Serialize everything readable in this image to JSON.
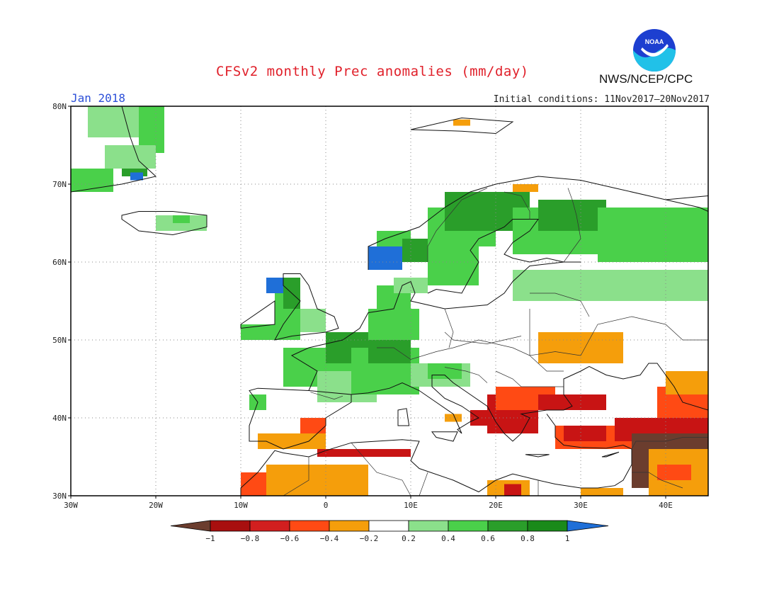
{
  "title": "CFSv2 monthly Prec anomalies (mm/day)",
  "month_label": "Jan 2018",
  "initial_conditions": "Initial conditions: 11Nov2017–20Nov2017",
  "agency": "NWS/NCEP/CPC",
  "logo": {
    "text": "NOAA",
    "icon": "noaa-logo-icon"
  },
  "map": {
    "lon_range": [
      -30,
      45
    ],
    "lat_range": [
      30,
      80
    ],
    "lon_ticks": [
      {
        "value": -30,
        "label": "30W"
      },
      {
        "value": -20,
        "label": "20W"
      },
      {
        "value": -10,
        "label": "10W"
      },
      {
        "value": 0,
        "label": "0"
      },
      {
        "value": 10,
        "label": "10E"
      },
      {
        "value": 20,
        "label": "20E"
      },
      {
        "value": 30,
        "label": "30E"
      },
      {
        "value": 40,
        "label": "40E"
      }
    ],
    "lat_ticks": [
      {
        "value": 30,
        "label": "30N"
      },
      {
        "value": 40,
        "label": "40N"
      },
      {
        "value": 50,
        "label": "50N"
      },
      {
        "value": 60,
        "label": "60N"
      },
      {
        "value": 70,
        "label": "70N"
      },
      {
        "value": 80,
        "label": "80N"
      }
    ],
    "grid": true,
    "anomaly_regions": [
      {
        "lon": -28,
        "lat": 76,
        "w": 8,
        "h": 4,
        "color": "#8be08b"
      },
      {
        "lon": -22,
        "lat": 74,
        "w": 3,
        "h": 6,
        "color": "#4ad04a"
      },
      {
        "lon": -26,
        "lat": 72,
        "w": 6,
        "h": 3,
        "color": "#8be08b"
      },
      {
        "lon": -30,
        "lat": 69,
        "w": 5,
        "h": 3,
        "color": "#4ad04a"
      },
      {
        "lon": -24,
        "lat": 71,
        "w": 3,
        "h": 1,
        "color": "#2a9e2a"
      },
      {
        "lon": -23,
        "lat": 70.5,
        "w": 1.5,
        "h": 1,
        "color": "#1f6fd8"
      },
      {
        "lon": -20,
        "lat": 64,
        "w": 6,
        "h": 2,
        "color": "#8be08b"
      },
      {
        "lon": -18,
        "lat": 65,
        "w": 2,
        "h": 1,
        "color": "#4ad04a"
      },
      {
        "lon": -10,
        "lat": 50,
        "w": 4,
        "h": 2,
        "color": "#4ad04a"
      },
      {
        "lon": -6,
        "lat": 50,
        "w": 3,
        "h": 6,
        "color": "#4ad04a"
      },
      {
        "lon": -5,
        "lat": 54,
        "w": 2,
        "h": 4,
        "color": "#2a9e2a"
      },
      {
        "lon": -7,
        "lat": 56,
        "w": 2,
        "h": 2,
        "color": "#1f6fd8"
      },
      {
        "lon": -3,
        "lat": 51,
        "w": 3,
        "h": 3,
        "color": "#8be08b"
      },
      {
        "lon": -5,
        "lat": 44,
        "w": 8,
        "h": 5,
        "color": "#4ad04a"
      },
      {
        "lon": 0,
        "lat": 47,
        "w": 6,
        "h": 4,
        "color": "#2a9e2a"
      },
      {
        "lon": -1,
        "lat": 42,
        "w": 7,
        "h": 4,
        "color": "#8be08b"
      },
      {
        "lon": 3,
        "lat": 43,
        "w": 8,
        "h": 6,
        "color": "#4ad04a"
      },
      {
        "lon": 5,
        "lat": 47,
        "w": 5,
        "h": 3,
        "color": "#2a9e2a"
      },
      {
        "lon": 5,
        "lat": 50,
        "w": 6,
        "h": 4,
        "color": "#4ad04a"
      },
      {
        "lon": 10,
        "lat": 44,
        "w": 7,
        "h": 3,
        "color": "#8be08b"
      },
      {
        "lon": 12,
        "lat": 45,
        "w": 4,
        "h": 2,
        "color": "#4ad04a"
      },
      {
        "lon": 6,
        "lat": 54,
        "w": 4,
        "h": 3,
        "color": "#4ad04a"
      },
      {
        "lon": 8,
        "lat": 56,
        "w": 4,
        "h": 2,
        "color": "#8be08b"
      },
      {
        "lon": 5,
        "lat": 59,
        "w": 4,
        "h": 3,
        "color": "#1f6fd8"
      },
      {
        "lon": 6,
        "lat": 62,
        "w": 4,
        "h": 2,
        "color": "#4ad04a"
      },
      {
        "lon": 9,
        "lat": 60,
        "w": 4,
        "h": 3,
        "color": "#2a9e2a"
      },
      {
        "lon": 12,
        "lat": 62,
        "w": 8,
        "h": 5,
        "color": "#4ad04a"
      },
      {
        "lon": 14,
        "lat": 64,
        "w": 10,
        "h": 5,
        "color": "#2a9e2a"
      },
      {
        "lon": 12,
        "lat": 57,
        "w": 6,
        "h": 5,
        "color": "#4ad04a"
      },
      {
        "lon": 22,
        "lat": 61,
        "w": 10,
        "h": 6,
        "color": "#4ad04a"
      },
      {
        "lon": 25,
        "lat": 64,
        "w": 8,
        "h": 4,
        "color": "#2a9e2a"
      },
      {
        "lon": 32,
        "lat": 60,
        "w": 13,
        "h": 7,
        "color": "#4ad04a"
      },
      {
        "lon": 22,
        "lat": 55,
        "w": 23,
        "h": 4,
        "color": "#8be08b"
      },
      {
        "lon": 22,
        "lat": 69,
        "w": 3,
        "h": 1,
        "color": "#f59e0b"
      },
      {
        "lon": 15,
        "lat": 77.5,
        "w": 2,
        "h": 0.8,
        "color": "#f59e0b"
      },
      {
        "lon": 25,
        "lat": 47,
        "w": 10,
        "h": 4,
        "color": "#f59e0b"
      },
      {
        "lon": 19,
        "lat": 38,
        "w": 6,
        "h": 5,
        "color": "#c81414"
      },
      {
        "lon": 20,
        "lat": 41,
        "w": 7,
        "h": 3,
        "color": "#ff4a14"
      },
      {
        "lon": 25,
        "lat": 41,
        "w": 8,
        "h": 2,
        "color": "#c81414"
      },
      {
        "lon": 27,
        "lat": 36,
        "w": 10,
        "h": 3,
        "color": "#ff4a14"
      },
      {
        "lon": 28,
        "lat": 37,
        "w": 5,
        "h": 2,
        "color": "#c81414"
      },
      {
        "lon": 34,
        "lat": 37,
        "w": 11,
        "h": 3,
        "color": "#c81414"
      },
      {
        "lon": 36,
        "lat": 36,
        "w": 9,
        "h": 2,
        "color": "#6b3d2e"
      },
      {
        "lon": 36,
        "lat": 31,
        "w": 3,
        "h": 5,
        "color": "#6b3d2e"
      },
      {
        "lon": 38,
        "lat": 30,
        "w": 7,
        "h": 6,
        "color": "#f59e0b"
      },
      {
        "lon": 39,
        "lat": 32,
        "w": 4,
        "h": 2,
        "color": "#ff4a14"
      },
      {
        "lon": 39,
        "lat": 40,
        "w": 6,
        "h": 4,
        "color": "#ff4a14"
      },
      {
        "lon": 40,
        "lat": 43,
        "w": 5,
        "h": 3,
        "color": "#f59e0b"
      },
      {
        "lon": -7,
        "lat": 30,
        "w": 12,
        "h": 4,
        "color": "#f59e0b"
      },
      {
        "lon": -10,
        "lat": 30,
        "w": 3,
        "h": 3,
        "color": "#ff4a14"
      },
      {
        "lon": -1,
        "lat": 35,
        "w": 11,
        "h": 1,
        "color": "#c81414"
      },
      {
        "lon": -8,
        "lat": 36,
        "w": 8,
        "h": 2,
        "color": "#f59e0b"
      },
      {
        "lon": -3,
        "lat": 38,
        "w": 3,
        "h": 2,
        "color": "#ff4a14"
      },
      {
        "lon": 19,
        "lat": 30,
        "w": 5,
        "h": 2,
        "color": "#f59e0b"
      },
      {
        "lon": 21,
        "lat": 30,
        "w": 2,
        "h": 1.5,
        "color": "#c81414"
      },
      {
        "lon": 30,
        "lat": 30,
        "w": 5,
        "h": 1,
        "color": "#f59e0b"
      },
      {
        "lon": 17,
        "lat": 39,
        "w": 2,
        "h": 2,
        "color": "#c81414"
      },
      {
        "lon": 14,
        "lat": 39.5,
        "w": 2,
        "h": 1,
        "color": "#f59e0b"
      },
      {
        "lon": -9,
        "lat": 41,
        "w": 2,
        "h": 2,
        "color": "#4ad04a"
      }
    ],
    "land_outlines": [
      "M -24 80 L -23 76 L -22 73 L -20 71 L -24 70 L -30 69",
      "M -24 66 L -22 66.5 L -18 66.5 L -14 66 L -14 64.5 L -18 63.5 L -22 64 L -24 65.5 Z",
      "M -10 52 L -6 55 L -6 52 L -10 51.5 Z",
      "M -6 50 L -5 52 L -3 55 L -5 57 L -5 58.5 L -3 58.5 L -2 57 L -1 54 L 1 53 L 1.5 51.5 L 0 51 L -4 50.5 Z",
      "M -9 43.5 L -8 42 L -9 39 L -9 37 L -7 37 L -5 36 L -2 37 L 0 39 L 0 40 L 3 42 L 3 43 L -2 43.5 L -8 43.8 Z",
      "M -2 43.5 L -1 46 L -4 48 L -2 49 L 2 50 L 4 51.5 L 5 53.5 L 8 54 L 9 57 L 10 57.5 L 10.5 56 L 10 55 L 12 54.5 L 14 54 L 19 54.5 L 21 56 L 22 57.5 L 24 59.5 L 28 60",
      "M 5 59 L 5 62 L 7 63 L 11 64.5 L 14 67 L 17 69 L 20 70 L 25 71 L 30 70.5 L 34 69.5 L 40 68 L 45 68.5",
      "M 12 56 L 13 56.5 L 16 56 L 17 58 L 18 60 L 17 61.5 L 18 63 L 21 64.5 L 22 65.5 L 25 65.5 L 24 64 L 22 62.5 L 21 61 L 22 60.5 L 24 60 L 26 60.5 L 28 60 L 30 60",
      "M 3 43 L 5 43.2 L 7.5 43.8 L 9 44.5 L 11 43.5 L 13 42 L 15 40.5 L 16 38 L 15.5 38.5 L 17 39.5 L 18 40 L 16 41.5 L 14 42.5 L 12.5 44 L 12.5 45.5 L 14 45.5 L 15 44.5 L 17 43 L 19 41.5 L 20 39.5 L 21 38 L 22 37 L 23 38 L 24 40 L 23 40.5 L 26 41 L 28 41 L 29 41.5 L 28 43 L 28 45 L 30 46 L 31 46.6 L 33 45.5 L 35 45 L 37 45.5 L 38 47 L 39 47 L 41 44 L 42 42 L 45 41",
      "M 26 40.5 L 27 39 L 27 37.5 L 28 36.5 L 30 36.2 L 33 36.1 L 35 36.5 L 36 36 L 36 34 L 35 32 L 34 31.3 L 32 31 L 30 31 L 27 31.5 L 25 32 L 22 32.8 L 20 32 L 18 30.5 L 15 32 L 11 33.5 L 10 34.5 L 11 37 L 9 37.2 L 6 37 L 3 36.8 L 0 35.8 L -2 35 L -5 35.5 L -6 35.8 L -8 33 L -10 31 L -10 30",
      "M 8.5 41 L 9.5 41.2 L 9.8 39 L 8.5 39 Z",
      "M 12.5 38.2 L 15.5 38.2 L 15 37 L 13 37.5 Z",
      "M 33 35 L 34.5 35.6 L 32.5 35 Z",
      "M 23.5 35.3 L 26.3 35.3 L 25 35 Z",
      "M 10 77 L 16 78.5 L 22 78 L 20 76.5 L 16 76.8 Z",
      "M 40 68 L 44 67 L 45 66.5"
    ],
    "border_lines": [
      "M 6 49 L 8 49 L 10 47.5 L 13 48.5 L 15 49 L 18 50 L 22 49 L 24 48 L 27 48.5 L 30 48",
      "M 14 51 L 15 50 L 19 49.5 L 23 50.5",
      "M 14 54 L 15 51 L 14.5 49",
      "M 24 54 L 24 50 L 24 48 L 26 46 L 28 46",
      "M 20 46 L 22 45 L 23 44 L 28 44",
      "M 14 46.5 L 16.5 46 L 18 45.5 L 19 44.5",
      "M 30 48 L 32 52 L 36 53 L 40 52 L 42 50 L 45 50",
      "M 24 56 L 27 56 L 30 55 L 31 53",
      "M 28 60 L 29 61.5 L 30 63 L 29.5 66 L 29 68 L 28.5 69.5",
      "M 21 69 L 23 68.5 L 24 66.5 L 24 65.5",
      "M 12 60 L 12 62 L 13 64 L 16 68 L 19 69.5",
      "M 36 36 L 36.5 37 L 40 37 L 42 37.5 L 45 37.5",
      "M 36 33 L 38 33 L 39.5 32 L 42 31",
      "M 3 36.8 L 6 33 L 9 32 L 10 30",
      "M 12 33 L 11 30",
      "M 25 32 L 25 30",
      "M -2 35 L -2 32 L -5 30",
      "M 2 42.8 L 1 42.4 L -1.8 43.3"
    ]
  },
  "colorbar": {
    "ticks": [
      "-1",
      "-0.8",
      "-0.6",
      "-0.4",
      "-0.2",
      "0.2",
      "0.4",
      "0.6",
      "0.8",
      "1"
    ],
    "low_color": "#6b3d2e",
    "high_color": "#1f6fd8",
    "segments": [
      "#a80f0f",
      "#d21f1f",
      "#ff4a14",
      "#f59e0b",
      "#ffffff",
      "#8be08b",
      "#4ad04a",
      "#2a9e2a",
      "#1a8a1a"
    ]
  }
}
